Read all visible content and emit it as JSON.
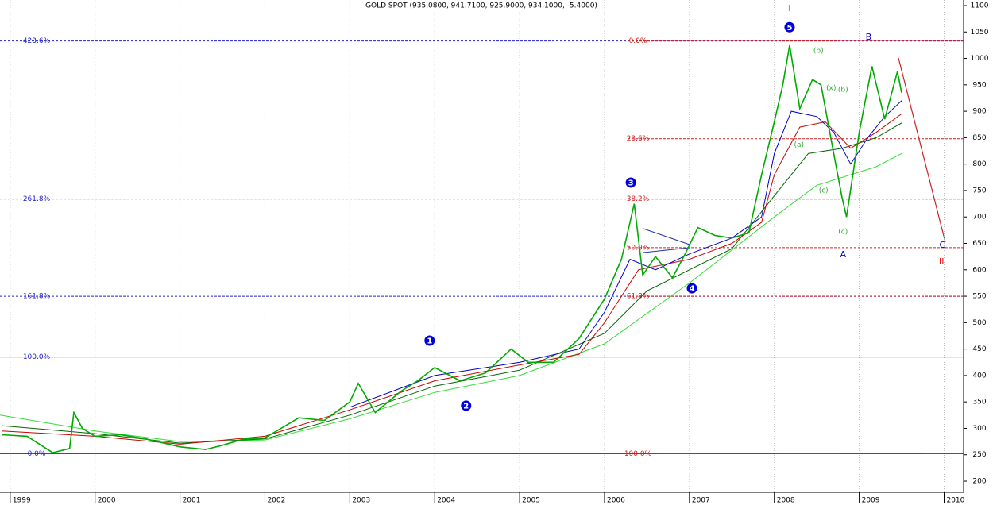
{
  "chart_data": {
    "type": "line",
    "title": "GOLD SPOT (935.0800, 941.7100, 925.9000, 934.1000, -5.4000)",
    "xlim": [
      1998.88,
      2010.22
    ],
    "xticks": [
      1999,
      2000,
      2001,
      2002,
      2003,
      2004,
      2005,
      2006,
      2007,
      2008,
      2009,
      2010
    ],
    "ylim": [
      179,
      1110.5
    ],
    "yticks": [
      200,
      250,
      300,
      350,
      400,
      450,
      500,
      550,
      600,
      650,
      700,
      750,
      800,
      850,
      900,
      950,
      1000,
      1050,
      1100
    ],
    "grid": true,
    "series": [
      {
        "color": "#00aa00",
        "width": 1.6,
        "x": [
          1998.9,
          1999.2,
          1999.5,
          1999.7,
          1999.75,
          1999.85,
          2000.0,
          2000.3,
          2000.6,
          2001.0,
          2001.3,
          2001.5,
          2001.75,
          2002.0,
          2002.4,
          2002.7,
          2003.0,
          2003.1,
          2003.3,
          2003.6,
          2003.8,
          2004.0,
          2004.3,
          2004.6,
          2004.9,
          2005.1,
          2005.4,
          2005.7,
          2006.0,
          2006.2,
          2006.35,
          2006.45,
          2006.6,
          2006.8,
          2006.95,
          2007.1,
          2007.3,
          2007.5,
          2007.7,
          2007.85,
          2008.0,
          2008.1,
          2008.18,
          2008.3,
          2008.45,
          2008.55,
          2008.7,
          2008.8,
          2008.85,
          2009.0,
          2009.15,
          2009.3,
          2009.45,
          2009.5
        ],
        "values": [
          288,
          285,
          254,
          262,
          330,
          300,
          285,
          288,
          280,
          265,
          260,
          268,
          280,
          282,
          320,
          315,
          350,
          385,
          330,
          370,
          390,
          415,
          390,
          405,
          450,
          425,
          425,
          470,
          545,
          620,
          725,
          590,
          625,
          585,
          630,
          680,
          665,
          660,
          670,
          780,
          880,
          950,
          1025,
          905,
          960,
          950,
          820,
          735,
          700,
          860,
          985,
          885,
          975,
          935
        ]
      },
      {
        "color": "#0000cc",
        "width": 1,
        "x": [
          2003.0,
          2004.0,
          2005.0,
          2005.7,
          2006.0,
          2006.3,
          2006.6,
          2007.0,
          2007.5,
          2007.85,
          2008.0,
          2008.2,
          2008.5,
          2008.7,
          2008.9,
          2009.1,
          2009.3,
          2009.5
        ],
        "values": [
          340,
          400,
          425,
          450,
          520,
          620,
          600,
          630,
          660,
          700,
          820,
          900,
          890,
          860,
          800,
          850,
          890,
          920
        ]
      },
      {
        "color": "#cc0000",
        "width": 1,
        "x": [
          1998.9,
          2000.0,
          2001.0,
          2002.0,
          2003.0,
          2004.0,
          2005.0,
          2005.7,
          2006.0,
          2006.4,
          2007.0,
          2007.5,
          2007.85,
          2008.0,
          2008.3,
          2008.6,
          2008.9,
          2009.2,
          2009.5
        ],
        "values": [
          295,
          285,
          270,
          285,
          335,
          390,
          420,
          440,
          500,
          600,
          620,
          650,
          690,
          780,
          870,
          880,
          830,
          860,
          895
        ]
      },
      {
        "color": "#006600",
        "width": 1,
        "x": [
          1998.9,
          2000.0,
          2001.0,
          2002.0,
          2003.0,
          2004.0,
          2005.0,
          2006.0,
          2006.5,
          2007.0,
          2007.5,
          2008.0,
          2008.4,
          2008.8,
          2009.2,
          2009.5
        ],
        "values": [
          305,
          290,
          272,
          280,
          325,
          380,
          410,
          480,
          560,
          600,
          640,
          740,
          820,
          830,
          850,
          878
        ]
      },
      {
        "color": "#33dd33",
        "width": 1,
        "x": [
          1998.88,
          2000.0,
          2001.0,
          2002.0,
          2003.0,
          2004.0,
          2005.0,
          2006.0,
          2007.0,
          2008.0,
          2008.5,
          2008.8,
          2009.2,
          2009.5
        ],
        "values": [
          325,
          295,
          275,
          278,
          318,
          368,
          400,
          460,
          575,
          700,
          760,
          775,
          795,
          820
        ]
      }
    ],
    "fib_left": {
      "color": "#2222cc",
      "levels": [
        {
          "value": 1033,
          "label": "423.6%",
          "style": "dashed"
        },
        {
          "value": 734,
          "label": "261.8%",
          "style": "dashed"
        },
        {
          "value": 550,
          "label": "161.8%",
          "style": "dashed"
        },
        {
          "value": 435,
          "label": "100.0%",
          "style": "solid"
        },
        {
          "value": 252,
          "label": "0.0%",
          "style": "solid"
        }
      ]
    },
    "fib_right": {
      "color": "#cc2222",
      "levels": [
        {
          "value": 1033,
          "label": "0.0%"
        },
        {
          "value": 848,
          "label": "23.6%"
        },
        {
          "value": 734,
          "label": "38.2%"
        },
        {
          "value": 642,
          "label": "50.0%"
        },
        {
          "value": 550,
          "label": "61.8%"
        },
        {
          "value": 252,
          "label": "100.0%"
        }
      ]
    },
    "annotations": [
      {
        "text": "1",
        "x": 2003.94,
        "y": 466,
        "color": "#0000dd",
        "circled": true
      },
      {
        "text": "2",
        "x": 2004.37,
        "y": 343,
        "color": "#0000dd",
        "circled": true
      },
      {
        "text": "3",
        "x": 2006.31,
        "y": 765,
        "color": "#0000dd",
        "circled": true
      },
      {
        "text": "4",
        "x": 2007.03,
        "y": 565,
        "color": "#0000dd",
        "circled": true
      },
      {
        "text": "5",
        "x": 2008.18,
        "y": 1059,
        "color": "#0000dd",
        "circled": true
      },
      {
        "text": "I",
        "x": 2008.18,
        "y": 1094,
        "color": "#dd0000",
        "circled": false
      },
      {
        "text": "II",
        "x": 2009.97,
        "y": 615,
        "color": "#dd0000",
        "circled": false
      },
      {
        "text": "A",
        "x": 2008.81,
        "y": 628,
        "color": "#0000cc",
        "circled": false
      },
      {
        "text": "B",
        "x": 2009.11,
        "y": 1040,
        "color": "#0000cc",
        "circled": false
      },
      {
        "text": "C",
        "x": 2009.98,
        "y": 646,
        "color": "#0000cc",
        "circled": false
      },
      {
        "text": "(a)",
        "x": 2008.29,
        "y": 836,
        "color": "#33aa33",
        "circled": false
      },
      {
        "text": "(b)",
        "x": 2008.52,
        "y": 1014,
        "color": "#33aa33",
        "circled": false
      },
      {
        "text": "(x)",
        "x": 2008.67,
        "y": 944,
        "color": "#33aa33",
        "circled": false
      },
      {
        "text": "(b)",
        "x": 2008.81,
        "y": 941,
        "color": "#33aa33",
        "circled": false
      },
      {
        "text": "(c)",
        "x": 2008.58,
        "y": 750,
        "color": "#33aa33",
        "circled": false
      },
      {
        "text": "(c)",
        "x": 2008.81,
        "y": 672,
        "color": "#33aa33",
        "circled": false
      }
    ]
  }
}
